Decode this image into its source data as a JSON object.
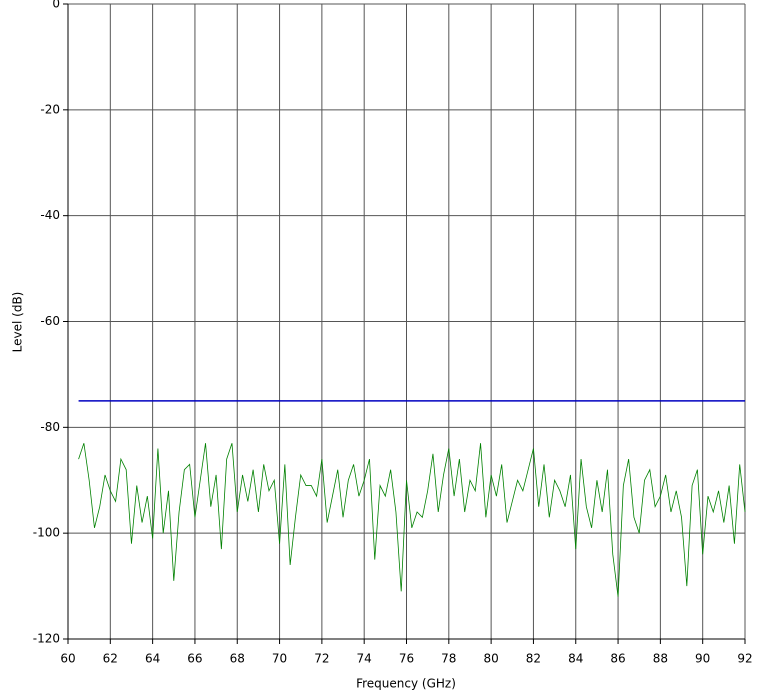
{
  "chart_data": {
    "type": "line",
    "x_label": "Frequency (GHz)",
    "y_label": "Level (dB)",
    "xlim": [
      60,
      92
    ],
    "xticks": [
      60,
      62,
      64,
      66,
      68,
      70,
      72,
      74,
      76,
      78,
      80,
      82,
      84,
      86,
      88,
      90,
      92
    ],
    "ylim": [
      -120,
      0
    ],
    "yticks": [
      0,
      -20,
      -40,
      -60,
      -80,
      -100,
      -120
    ],
    "grid": true,
    "series": [
      {
        "color": "#0000c0",
        "x": [
          60.5,
          92
        ],
        "values": [
          -75,
          -75
        ]
      },
      {
        "color": "#008000",
        "x": [
          60.5,
          60.75,
          61,
          61.25,
          61.5,
          61.75,
          62,
          62.25,
          62.5,
          62.75,
          63,
          63.25,
          63.5,
          63.75,
          64,
          64.25,
          64.5,
          64.75,
          65,
          65.25,
          65.5,
          65.75,
          66,
          66.25,
          66.5,
          66.75,
          67,
          67.25,
          67.5,
          67.75,
          68,
          68.25,
          68.5,
          68.75,
          69,
          69.25,
          69.5,
          69.75,
          70,
          70.25,
          70.5,
          70.75,
          71,
          71.25,
          71.5,
          71.75,
          72,
          72.25,
          72.5,
          72.75,
          73,
          73.25,
          73.5,
          73.75,
          74,
          74.25,
          74.5,
          74.75,
          75,
          75.25,
          75.5,
          75.75,
          76,
          76.25,
          76.5,
          76.75,
          77,
          77.25,
          77.5,
          77.75,
          78,
          78.25,
          78.5,
          78.75,
          79,
          79.25,
          79.5,
          79.75,
          80,
          80.25,
          80.5,
          80.75,
          81,
          81.25,
          81.5,
          81.75,
          82,
          82.25,
          82.5,
          82.75,
          83,
          83.25,
          83.5,
          83.75,
          84,
          84.25,
          84.5,
          84.75,
          85,
          85.25,
          85.5,
          85.75,
          86,
          86.25,
          86.5,
          86.75,
          87,
          87.25,
          87.5,
          87.75,
          88,
          88.25,
          88.5,
          88.75,
          89,
          89.25,
          89.5,
          89.75,
          90,
          90.25,
          90.5,
          90.75,
          91,
          91.25,
          91.5,
          91.75,
          92
        ],
        "values": [
          -86,
          -83,
          -90,
          -99,
          -95,
          -89,
          -92,
          -94,
          -86,
          -88,
          -102,
          -91,
          -98,
          -93,
          -101,
          -84,
          -100,
          -92,
          -109,
          -96,
          -88,
          -87,
          -97,
          -90,
          -83,
          -95,
          -89,
          -103,
          -86,
          -83,
          -96,
          -89,
          -94,
          -88,
          -96,
          -87,
          -92,
          -90,
          -102,
          -87,
          -106,
          -97,
          -89,
          -91,
          -91,
          -93,
          -86,
          -98,
          -93,
          -88,
          -97,
          -90,
          -87,
          -93,
          -90,
          -86,
          -105,
          -91,
          -93,
          -88,
          -96,
          -111,
          -90,
          -99,
          -96,
          -97,
          -92,
          -85,
          -96,
          -89,
          -84,
          -93,
          -86,
          -96,
          -90,
          -92,
          -83,
          -97,
          -89,
          -93,
          -87,
          -98,
          -94,
          -90,
          -92,
          -88,
          -84,
          -95,
          -87,
          -97,
          -90,
          -92,
          -95,
          -89,
          -103,
          -86,
          -95,
          -99,
          -90,
          -96,
          -88,
          -104,
          -112,
          -91,
          -86,
          -97,
          -100,
          -90,
          -88,
          -95,
          -93,
          -89,
          -96,
          -92,
          -97,
          -110,
          -91,
          -88,
          -104,
          -93,
          -96,
          -92,
          -98,
          -91,
          -102,
          -87,
          -96
        ]
      }
    ]
  }
}
